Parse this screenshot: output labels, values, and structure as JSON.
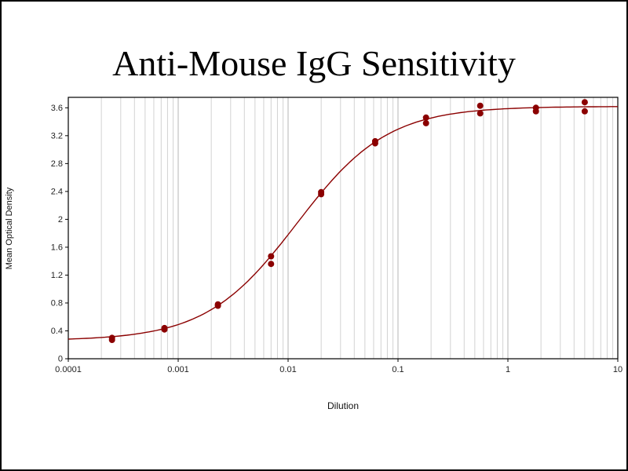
{
  "frame": {
    "background": "#ffffff",
    "border_color": "#000000"
  },
  "chart_data": {
    "type": "scatter",
    "title": "Anti-Mouse IgG Sensitivity",
    "xlabel": "Dilution",
    "ylabel": "Mean Optical Density",
    "x_scale": "log",
    "xlim": [
      0.0001,
      10
    ],
    "ylim": [
      0,
      3.75
    ],
    "x_major_ticks": [
      0.0001,
      0.001,
      0.01,
      0.1,
      1,
      10
    ],
    "x_tick_labels": [
      "0.0001",
      "0.001",
      "0.01",
      "0.1",
      "1",
      "10"
    ],
    "y_ticks": [
      0,
      0.4,
      0.8,
      1.2,
      1.6,
      2,
      2.4,
      2.8,
      3.2,
      3.6
    ],
    "y_tick_labels": [
      "0",
      "0.4",
      "0.8",
      "1.2",
      "1.6",
      "2",
      "2.4",
      "2.8",
      "3.2",
      "3.6"
    ],
    "grid": "vertical-log-minor",
    "grid_minor_color": "#d2d2d2",
    "grid_major_color": "#b5b5b5",
    "axis_color": "#000000",
    "series": [
      {
        "name": "Anti-Mouse IgG",
        "color": "#8b0000",
        "marker": "circle",
        "points": [
          [
            0.00025,
            0.27
          ],
          [
            0.00025,
            0.3
          ],
          [
            0.00075,
            0.42
          ],
          [
            0.00075,
            0.44
          ],
          [
            0.0023,
            0.76
          ],
          [
            0.0023,
            0.78
          ],
          [
            0.007,
            1.36
          ],
          [
            0.007,
            1.47
          ],
          [
            0.02,
            2.36
          ],
          [
            0.02,
            2.39
          ],
          [
            0.062,
            3.09
          ],
          [
            0.062,
            3.12
          ],
          [
            0.18,
            3.38
          ],
          [
            0.18,
            3.46
          ],
          [
            0.56,
            3.52
          ],
          [
            0.56,
            3.63
          ],
          [
            1.8,
            3.55
          ],
          [
            1.8,
            3.6
          ],
          [
            5.0,
            3.55
          ],
          [
            5.0,
            3.68
          ]
        ]
      }
    ],
    "fit_curve": {
      "model": "4PL",
      "bottom": 0.26,
      "top": 3.62,
      "ec50": 0.012,
      "hill": 1.05,
      "color": "#8b0000"
    }
  }
}
